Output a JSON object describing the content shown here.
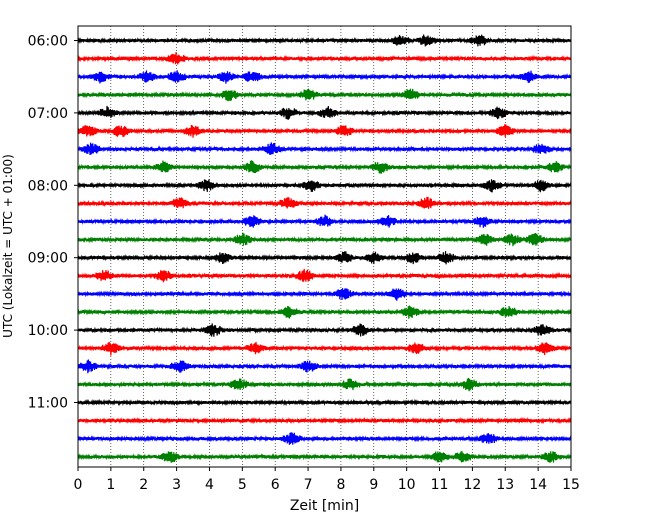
{
  "chart_data": {
    "type": "line",
    "title": "",
    "xlabel": "Zeit  [min]",
    "ylabel": "UTC (Lokalzeit = UTC + 01:00)",
    "xlim": [
      0,
      15
    ],
    "x_ticks": [
      "0",
      "1",
      "2",
      "3",
      "4",
      "5",
      "6",
      "7",
      "8",
      "9",
      "10",
      "11",
      "12",
      "13",
      "14",
      "15"
    ],
    "y_ticks": [
      "06:00",
      "07:00",
      "08:00",
      "09:00",
      "10:00",
      "11:00"
    ],
    "grid": "vertical dotted at each minute",
    "trace_interval_min": 15,
    "first_trace": "06:00",
    "colors": [
      "#000000",
      "#ff0000",
      "#0000ff",
      "#008000"
    ],
    "traces": [
      {
        "start": "06:00",
        "color": "#000000",
        "spikes_min": [
          9.8,
          10.6,
          12.2
        ]
      },
      {
        "start": "06:15",
        "color": "#ff0000",
        "spikes_min": [
          3.0
        ]
      },
      {
        "start": "06:30",
        "color": "#0000ff",
        "spikes_min": [
          0.7,
          2.1,
          3.0,
          4.5,
          5.3,
          13.7
        ]
      },
      {
        "start": "06:45",
        "color": "#008000",
        "spikes_min": [
          4.6,
          7.0,
          10.1
        ]
      },
      {
        "start": "07:00",
        "color": "#000000",
        "spikes_min": [
          0.9,
          6.4,
          7.6,
          12.8
        ]
      },
      {
        "start": "07:15",
        "color": "#ff0000",
        "spikes_min": [
          0.3,
          1.3,
          3.5,
          8.1,
          13.0
        ]
      },
      {
        "start": "07:30",
        "color": "#0000ff",
        "spikes_min": [
          0.4,
          5.9,
          14.1
        ]
      },
      {
        "start": "07:45",
        "color": "#008000",
        "spikes_min": [
          2.6,
          5.3,
          9.2,
          14.5
        ]
      },
      {
        "start": "08:00",
        "color": "#000000",
        "spikes_min": [
          3.9,
          7.1,
          12.6,
          14.1
        ]
      },
      {
        "start": "08:15",
        "color": "#ff0000",
        "spikes_min": [
          3.1,
          6.4,
          10.6
        ]
      },
      {
        "start": "08:30",
        "color": "#0000ff",
        "spikes_min": [
          5.3,
          7.5,
          9.4,
          12.3
        ]
      },
      {
        "start": "08:45",
        "color": "#008000",
        "spikes_min": [
          5.0,
          12.4,
          13.2,
          13.9
        ]
      },
      {
        "start": "09:00",
        "color": "#000000",
        "spikes_min": [
          4.4,
          8.1,
          9.0,
          10.2,
          11.2
        ]
      },
      {
        "start": "09:15",
        "color": "#ff0000",
        "spikes_min": [
          0.8,
          2.6,
          6.9
        ]
      },
      {
        "start": "09:30",
        "color": "#0000ff",
        "spikes_min": [
          8.1,
          9.7
        ]
      },
      {
        "start": "09:45",
        "color": "#008000",
        "spikes_min": [
          6.4,
          10.1,
          13.1
        ]
      },
      {
        "start": "10:00",
        "color": "#000000",
        "spikes_min": [
          4.1,
          8.6,
          14.1
        ]
      },
      {
        "start": "10:15",
        "color": "#ff0000",
        "spikes_min": [
          1.0,
          5.4,
          10.3,
          14.2
        ]
      },
      {
        "start": "10:30",
        "color": "#0000ff",
        "spikes_min": [
          0.3,
          3.1,
          7.0
        ]
      },
      {
        "start": "10:45",
        "color": "#008000",
        "spikes_min": [
          4.9,
          8.3,
          11.9
        ]
      },
      {
        "start": "11:00",
        "color": "#000000",
        "spikes_min": []
      },
      {
        "start": "11:15",
        "color": "#ff0000",
        "spikes_min": []
      },
      {
        "start": "11:30",
        "color": "#0000ff",
        "spikes_min": [
          6.5,
          12.5
        ]
      },
      {
        "start": "11:45",
        "color": "#008000",
        "spikes_min": [
          2.8,
          11.0,
          11.7,
          14.4
        ]
      }
    ]
  }
}
